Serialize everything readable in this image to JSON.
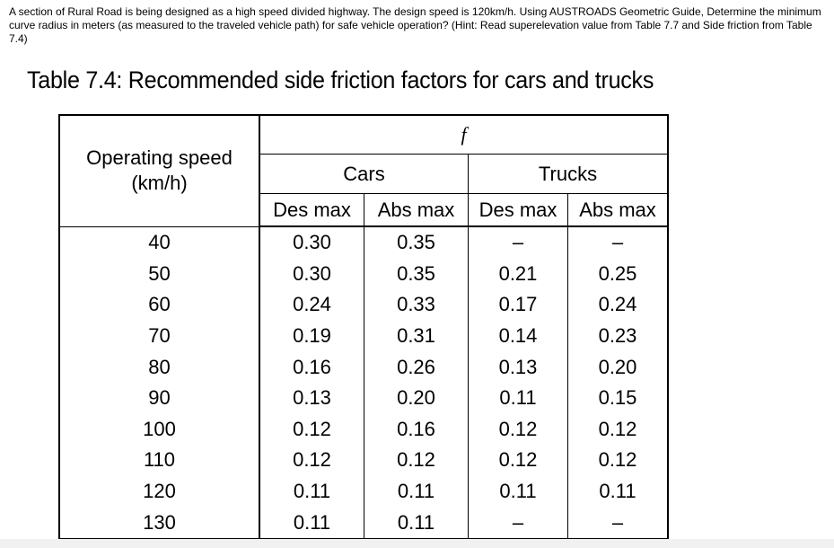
{
  "question": {
    "text": "A section of Rural Road is being designed as a high speed divided highway.  The design speed is 120km/h.  Using AUSTROADS Geometric Guide, Determine the minimum curve radius in meters (as measured to the traveled vehicle path) for safe vehicle operation? (Hint: Read superelevation value from Table 7.7 and Side friction from Table 7.4)"
  },
  "table": {
    "caption": "Table 7.4:  Recommended side friction factors for cars and trucks",
    "header": {
      "operating_speed": "Operating speed",
      "unit": "(km/h)",
      "f_symbol": "f",
      "cars": "Cars",
      "trucks": "Trucks",
      "cars_des": "Des max",
      "cars_abs": "Abs max",
      "trucks_des": "Des max",
      "trucks_abs": "Abs max"
    },
    "rows": [
      [
        "40",
        "0.30",
        "0.35",
        "–",
        "–"
      ],
      [
        "50",
        "0.30",
        "0.35",
        "0.21",
        "0.25"
      ],
      [
        "60",
        "0.24",
        "0.33",
        "0.17",
        "0.24"
      ],
      [
        "70",
        "0.19",
        "0.31",
        "0.14",
        "0.23"
      ],
      [
        "80",
        "0.16",
        "0.26",
        "0.13",
        "0.20"
      ],
      [
        "90",
        "0.13",
        "0.20",
        "0.11",
        "0.15"
      ],
      [
        "100",
        "0.12",
        "0.16",
        "0.12",
        "0.12"
      ],
      [
        "110",
        "0.12",
        "0.12",
        "0.12",
        "0.12"
      ],
      [
        "120",
        "0.11",
        "0.11",
        "0.11",
        "0.11"
      ],
      [
        "130",
        "0.11",
        "0.11",
        "–",
        "–"
      ]
    ]
  }
}
